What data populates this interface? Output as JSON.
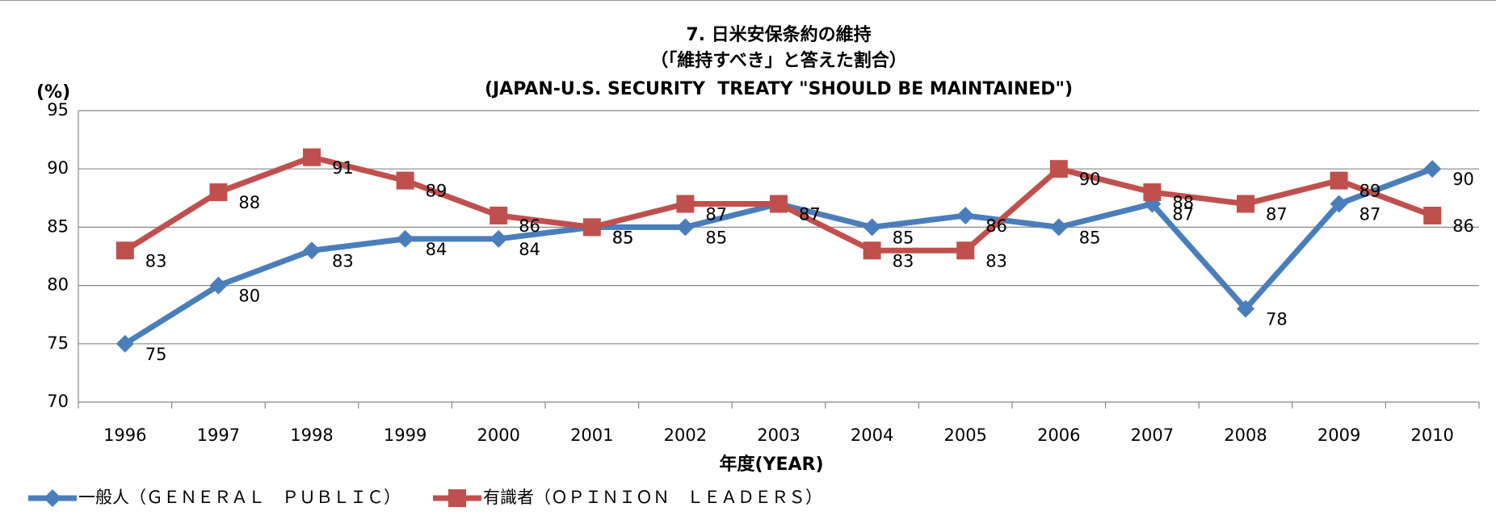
{
  "chart_data": {
    "type": "line",
    "title": [
      "7. 日米安保条約の維持",
      "（「維持すべき」と答えた割合）",
      "(JAPAN-U.S. SECURITY  TREATY \"SHOULD BE MAINTAINED\")"
    ],
    "y_label": "(%)",
    "x_label": "年度(YEAR)",
    "categories": [
      "1996",
      "1997",
      "1998",
      "1999",
      "2000",
      "2001",
      "2002",
      "2003",
      "2004",
      "2005",
      "2006",
      "2007",
      "2008",
      "2009",
      "2010"
    ],
    "series": [
      {
        "name": "一般人（ＧＥＮＥＲＡＬ　ＰＵＢＬＩＣ）",
        "color": "#4a7ebb",
        "marker": "diamond",
        "values": [
          75,
          80,
          83,
          84,
          84,
          85,
          85,
          87,
          85,
          86,
          85,
          87,
          78,
          87,
          90
        ]
      },
      {
        "name": "有識者（ＯＰＩＮＩＯＮ　ＬＥＡＤＥＲＳ）",
        "color": "#c0504d",
        "marker": "square",
        "values": [
          83,
          88,
          91,
          89,
          86,
          85,
          87,
          87,
          83,
          83,
          90,
          88,
          87,
          89,
          86
        ]
      }
    ],
    "ylim": [
      70,
      95
    ],
    "yticks": [
      70,
      75,
      80,
      85,
      90,
      95
    ],
    "grid": true,
    "legend": "bottom-left"
  }
}
